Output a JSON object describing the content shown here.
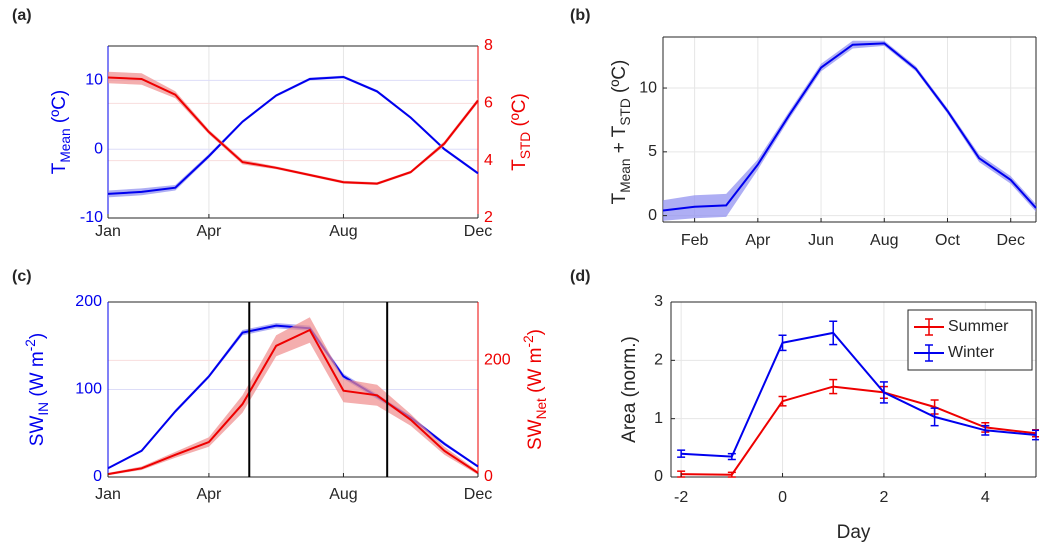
{
  "colors": {
    "blue": "#0000ee",
    "red": "#ee0000",
    "band_blue": "#8c8cf0",
    "band_red": "#f08c8c",
    "grid": "#e6e6e6",
    "axis": "#262626"
  },
  "chart_data": [
    {
      "panel_label": "(a)",
      "type": "line",
      "x_ticks": [
        "Jan",
        "Apr",
        "Aug",
        "Dec"
      ],
      "x_tick_positions": [
        1,
        4,
        8,
        12
      ],
      "xlim": [
        1,
        12
      ],
      "left_axis": {
        "label_main": "T",
        "label_sub": "Mean",
        "label_unit": " (ºC)",
        "ylim": [
          -10,
          15
        ],
        "ticks": [
          "-10",
          "0",
          "10"
        ],
        "tick_values": [
          -10,
          0,
          10
        ],
        "color": "blue"
      },
      "right_axis": {
        "label_main": "T",
        "label_sub": "STD",
        "label_unit": " (ºC)",
        "ylim": [
          2,
          8
        ],
        "ticks": [
          "2",
          "4",
          "6",
          "8"
        ],
        "tick_values": [
          2,
          4,
          6,
          8
        ],
        "color": "red"
      },
      "grid": true,
      "series": [
        {
          "axis": "left",
          "color": "blue",
          "x": [
            1,
            2,
            3,
            4,
            5,
            6,
            7,
            8,
            9,
            10,
            11,
            12
          ],
          "y": [
            -6.5,
            -6.2,
            -5.6,
            -1.0,
            4.0,
            7.8,
            10.2,
            10.5,
            8.4,
            4.6,
            0.0,
            -3.5
          ],
          "band": [
            0.5,
            0.5,
            0.4,
            0.3,
            0.2,
            0.2,
            0.2,
            0.2,
            0.2,
            0.2,
            0.2,
            0.2
          ]
        },
        {
          "axis": "right",
          "color": "red",
          "x": [
            1,
            2,
            3,
            4,
            5,
            6,
            7,
            8,
            9,
            10,
            11,
            12
          ],
          "y": [
            6.9,
            6.85,
            6.3,
            5.0,
            3.95,
            3.75,
            3.5,
            3.25,
            3.2,
            3.6,
            4.6,
            6.1
          ],
          "band": [
            0.2,
            0.2,
            0.12,
            0.08,
            0.08,
            0.05,
            0.05,
            0.05,
            0.05,
            0.05,
            0.08,
            0.08
          ]
        }
      ]
    },
    {
      "panel_label": "(b)",
      "type": "line",
      "x_ticks": [
        "Feb",
        "Apr",
        "Jun",
        "Aug",
        "Oct",
        "Dec"
      ],
      "x_tick_positions": [
        2,
        4,
        6,
        8,
        10,
        12
      ],
      "xlim": [
        1,
        12.8
      ],
      "y_label_main": "T",
      "y_label_sub1": "Mean",
      "y_label_mid": " + T",
      "y_label_sub2": "STD",
      "y_label_unit": " (ºC)",
      "ylim": [
        -0.5,
        14
      ],
      "y_ticks": [
        "0",
        "5",
        "10"
      ],
      "y_tick_values": [
        0,
        5,
        10
      ],
      "grid": true,
      "series": [
        {
          "color": "blue",
          "x": [
            1,
            2,
            3,
            4,
            5,
            6,
            7,
            8,
            9,
            10,
            11,
            12,
            12.8
          ],
          "y": [
            0.4,
            0.7,
            0.8,
            4.0,
            7.9,
            11.6,
            13.4,
            13.5,
            11.5,
            8.2,
            4.5,
            2.8,
            0.6
          ],
          "band": [
            0.8,
            0.9,
            0.9,
            0.4,
            0.3,
            0.3,
            0.3,
            0.2,
            0.2,
            0.2,
            0.3,
            0.3,
            0.3
          ]
        }
      ]
    },
    {
      "panel_label": "(c)",
      "type": "line",
      "x_ticks": [
        "Jan",
        "Apr",
        "Aug",
        "Dec"
      ],
      "x_tick_positions": [
        1,
        4,
        8,
        12
      ],
      "xlim": [
        1,
        12
      ],
      "left_axis": {
        "label_main": "SW",
        "label_sub": "IN",
        "label_unit": " (W m",
        "label_sup": "-2",
        "label_end": ")",
        "ylim": [
          0,
          200
        ],
        "ticks": [
          "0",
          "100",
          "200"
        ],
        "tick_values": [
          0,
          100,
          200
        ],
        "color": "blue"
      },
      "right_axis": {
        "label_main": "SW",
        "label_sub": "Net",
        "label_unit": " (W m",
        "label_sup": "-2",
        "label_end": ")",
        "ylim": [
          0,
          300
        ],
        "ticks": [
          "0",
          "200"
        ],
        "tick_values": [
          0,
          200
        ],
        "color": "red"
      },
      "vertical_lines_x": [
        5.2,
        9.3
      ],
      "grid": true,
      "series": [
        {
          "axis": "left",
          "color": "blue",
          "x": [
            1,
            2,
            3,
            4,
            5,
            6,
            7,
            8,
            9,
            10,
            11,
            12
          ],
          "y": [
            10,
            30,
            75,
            115,
            165,
            173,
            170,
            115,
            92,
            68,
            38,
            12
          ],
          "band": [
            1,
            1,
            2,
            2,
            3,
            3,
            3,
            3,
            3,
            2,
            2,
            1
          ]
        },
        {
          "axis": "right",
          "color": "red",
          "x": [
            1,
            2,
            3,
            4,
            5,
            6,
            7,
            8,
            9,
            10,
            11,
            12
          ],
          "y": [
            5,
            15,
            38,
            60,
            125,
            225,
            252,
            148,
            140,
            98,
            45,
            7
          ],
          "band": [
            2,
            3,
            5,
            8,
            15,
            18,
            22,
            20,
            18,
            10,
            7,
            3
          ]
        }
      ]
    },
    {
      "panel_label": "(d)",
      "type": "line",
      "x_label": "Day",
      "y_label": "Area (norm.)",
      "x_ticks": [
        "-2",
        "0",
        "2",
        "4"
      ],
      "x_tick_values": [
        -2,
        0,
        2,
        4
      ],
      "y_ticks": [
        "0",
        "1",
        "2",
        "3"
      ],
      "y_tick_values": [
        0,
        1,
        2,
        3
      ],
      "xlim": [
        -2.2,
        5
      ],
      "ylim": [
        0,
        3
      ],
      "grid": true,
      "legend": {
        "placement": "top-right",
        "entries": [
          "Summer",
          "Winter"
        ]
      },
      "series": [
        {
          "name": "Summer",
          "color": "red",
          "x": [
            -2,
            -1,
            0,
            1,
            2,
            3,
            4,
            5
          ],
          "y": [
            0.05,
            0.04,
            1.3,
            1.55,
            1.45,
            1.2,
            0.85,
            0.75
          ],
          "err": [
            0.05,
            0.04,
            0.08,
            0.12,
            0.1,
            0.12,
            0.08,
            0.06
          ]
        },
        {
          "name": "Winter",
          "color": "blue",
          "x": [
            -2,
            -1,
            0,
            1,
            2,
            3,
            4,
            5
          ],
          "y": [
            0.4,
            0.35,
            2.3,
            2.47,
            1.45,
            1.03,
            0.8,
            0.72
          ],
          "err": [
            0.06,
            0.05,
            0.13,
            0.2,
            0.18,
            0.15,
            0.08,
            0.08
          ]
        }
      ]
    }
  ]
}
